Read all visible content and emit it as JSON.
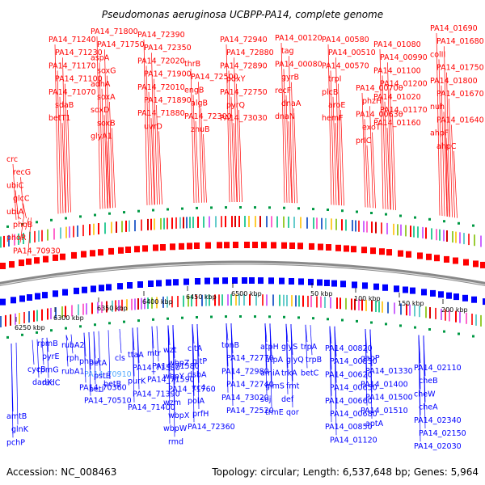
{
  "title": "Pseudomonas aeruginosa UCBPP-PA14, complete genome",
  "footer": {
    "accession": "Accession: NC_008463",
    "summary": "Topology: circular; Length: 6,537,648 bp; Genes: 5,964"
  },
  "colors": {
    "top_strand": "#ff0000",
    "bottom_strand": "#0000ff",
    "highlight": "#55aaff",
    "ring": "#888888"
  },
  "kbp_ticks": [
    "6250 kbp",
    "6300 kbp",
    "6350 kbp",
    "6400 kbp",
    "6450 kbp",
    "6500 kbp",
    "50 kbp",
    "100 kbp",
    "150 kbp",
    "200 kbp"
  ],
  "top_labels": [
    "crc",
    "recG",
    "ubiC",
    "glcC",
    "ubiA",
    "phoB",
    "phoR",
    "PA14_70930",
    "PA14_71230",
    "PA14_71240",
    "PA14_71170",
    "PA14_71100",
    "PA14_71070",
    "sdaB",
    "betT1",
    "PA14_71800",
    "PA14_71750",
    "aspA",
    "soxG",
    "adhA",
    "soxA",
    "soxD",
    "soxB",
    "glyA1",
    "PA14_72390",
    "PA14_72350",
    "PA14_72020",
    "PA14_71900",
    "PA14_72010",
    "PA14_71890",
    "PA14_71880",
    "uvrD",
    "thrB",
    "PA14_72500",
    "engB",
    "algB",
    "PA14_72300",
    "znuB",
    "PA14_72940",
    "PA14_72880",
    "PA14_72890",
    "pdxY",
    "PA14_72750",
    "pyrQ",
    "PA14_73030",
    "PA14_00120",
    "tag",
    "PA14_00080",
    "gyrB",
    "recF",
    "dnaA",
    "dnaN",
    "PA14_00580",
    "PA14_00510",
    "PA14_00570",
    "trpI",
    "plcB",
    "aroE",
    "hemF",
    "PA14_00700",
    "phzH",
    "PA14_00630",
    "exoT",
    "prIC",
    "PA14_01080",
    "PA14_00990",
    "PA14_01100",
    "PA14_01200",
    "PA14_01020",
    "PA14_01170",
    "PA14_01160",
    "PA14_01690",
    "PA14_01680",
    "colII",
    "PA14_01750",
    "PA14_01800",
    "PA14_01670",
    "nuh",
    "PA14_01640",
    "ahpF",
    "ahpC"
  ],
  "bottom_labels": [
    "amtB",
    "glnK",
    "pchP",
    "cycB",
    "dadX",
    "rpmB",
    "pyrE",
    "rpmG",
    "radC",
    "rubA2",
    "rph",
    "rubA1",
    "phoU",
    "PA14_70910",
    "PA14_70360",
    "PA14_70510",
    "betA",
    "pstB",
    "betI",
    "cls",
    "betB",
    "ttaA",
    "PA14_71380",
    "purK",
    "mtr",
    "PA14_71390",
    "PA14_71400",
    "PA14_71580",
    "PA14_71590",
    "wzt",
    "wbpZ",
    "wbpY",
    "PA14_71760",
    "wzm",
    "wbpX",
    "wbpW",
    "rmd",
    "citA",
    "gltP",
    "dsbA",
    "cc4",
    "polA",
    "prfH",
    "PA14_72360",
    "tonB",
    "PA14_72770",
    "PA14_72980",
    "PA14_72740",
    "PA14_73020",
    "PA14_72520",
    "atpH",
    "atpA",
    "amiA",
    "glmS",
    "soj",
    "trmE",
    "glyS",
    "glyQ",
    "trkA",
    "fmt",
    "def",
    "qor",
    "trpA",
    "trpB",
    "betC",
    "PA14_00820",
    "PA14_00830",
    "PA14_00620",
    "PA14_00650",
    "PA14_00660",
    "PA14_00680",
    "PA14_00850",
    "PA14_01120",
    "gabP",
    "PA14_01330",
    "PA14_01400",
    "PA14_01500",
    "PA14_01510",
    "aptA",
    "PA14_02110",
    "cheB",
    "cheW",
    "cheA",
    "PA14_02340",
    "PA14_02150",
    "PA14_02030"
  ]
}
